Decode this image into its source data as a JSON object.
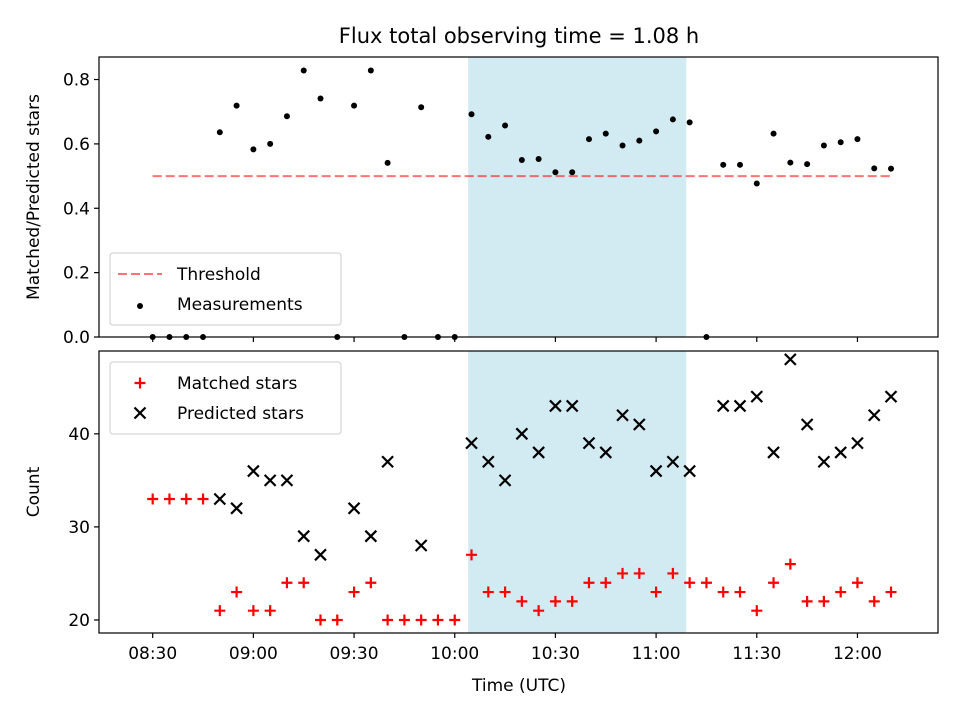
{
  "chart_data": {
    "title": "Flux total observing time = 1.08 h",
    "xlabel": "Time (UTC)",
    "x_unit": "UTC time",
    "xlim": [
      "08:14",
      "12:24"
    ],
    "x_ticks": [
      "08:30",
      "09:00",
      "09:30",
      "10:00",
      "10:30",
      "11:00",
      "11:30",
      "12:00"
    ],
    "highlight_span": {
      "start": "10:04",
      "end": "11:09",
      "color": "#add8e6"
    },
    "times": [
      "08:30",
      "08:35",
      "08:40",
      "08:45",
      "08:50",
      "08:55",
      "09:00",
      "09:05",
      "09:10",
      "09:15",
      "09:20",
      "09:25",
      "09:30",
      "09:35",
      "09:40",
      "09:45",
      "09:50",
      "09:55",
      "10:00",
      "10:05",
      "10:10",
      "10:15",
      "10:20",
      "10:25",
      "10:30",
      "10:35",
      "10:40",
      "10:45",
      "10:50",
      "10:55",
      "11:00",
      "11:05",
      "11:10",
      "11:15",
      "11:20",
      "11:25",
      "11:30",
      "11:35",
      "11:40",
      "11:45",
      "11:50",
      "11:55",
      "12:00",
      "12:05",
      "12:10"
    ],
    "panels": [
      {
        "type": "scatter",
        "ylabel": "Matched/Predicted stars",
        "ylim": [
          0,
          0.87
        ],
        "y_ticks": [
          0.0,
          0.2,
          0.4,
          0.6,
          0.8
        ],
        "tick_decimals": 1,
        "legend_position": "lower-left",
        "threshold": {
          "name": "Threshold",
          "value": 0.5,
          "x_start": "08:30",
          "x_end": "12:10",
          "color": "#ff0000",
          "style": "dashed"
        },
        "series": [
          {
            "name": "Measurements",
            "marker": "dot",
            "color": "#000000",
            "values": [
              0.0,
              0.0,
              0.0,
              0.0,
              0.636,
              0.719,
              0.583,
              0.6,
              0.686,
              0.828,
              0.741,
              0.0,
              0.719,
              0.828,
              0.541,
              0.0,
              0.714,
              0.0,
              0.0,
              0.692,
              0.622,
              0.657,
              0.55,
              0.553,
              0.512,
              0.512,
              0.615,
              0.632,
              0.595,
              0.61,
              0.639,
              0.676,
              0.667,
              0.0,
              0.535,
              0.535,
              0.477,
              0.632,
              0.542,
              0.537,
              0.595,
              0.605,
              0.615,
              0.524,
              0.523
            ]
          }
        ]
      },
      {
        "type": "scatter",
        "ylabel": "Count",
        "ylim": [
          18.6,
          48.9
        ],
        "y_ticks": [
          20,
          30,
          40
        ],
        "tick_decimals": 0,
        "legend_position": "upper-left",
        "series": [
          {
            "name": "Matched stars",
            "marker": "plus",
            "color": "#ff0000",
            "values": [
              33,
              33,
              33,
              33,
              21,
              23,
              21,
              21,
              24,
              24,
              20,
              20,
              23,
              24,
              20,
              20,
              20,
              20,
              20,
              27,
              23,
              23,
              22,
              21,
              22,
              22,
              24,
              24,
              25,
              25,
              23,
              25,
              24,
              24,
              23,
              23,
              21,
              24,
              26,
              22,
              22,
              23,
              24,
              22,
              23
            ]
          },
          {
            "name": "Predicted stars",
            "marker": "x",
            "color": "#000000",
            "values": [
              null,
              null,
              null,
              null,
              33,
              32,
              36,
              35,
              35,
              29,
              27,
              null,
              32,
              29,
              37,
              null,
              28,
              null,
              null,
              39,
              37,
              35,
              40,
              38,
              43,
              43,
              39,
              38,
              42,
              41,
              36,
              37,
              36,
              null,
              43,
              43,
              44,
              38,
              48,
              41,
              37,
              38,
              39,
              42,
              44
            ]
          }
        ]
      }
    ]
  }
}
